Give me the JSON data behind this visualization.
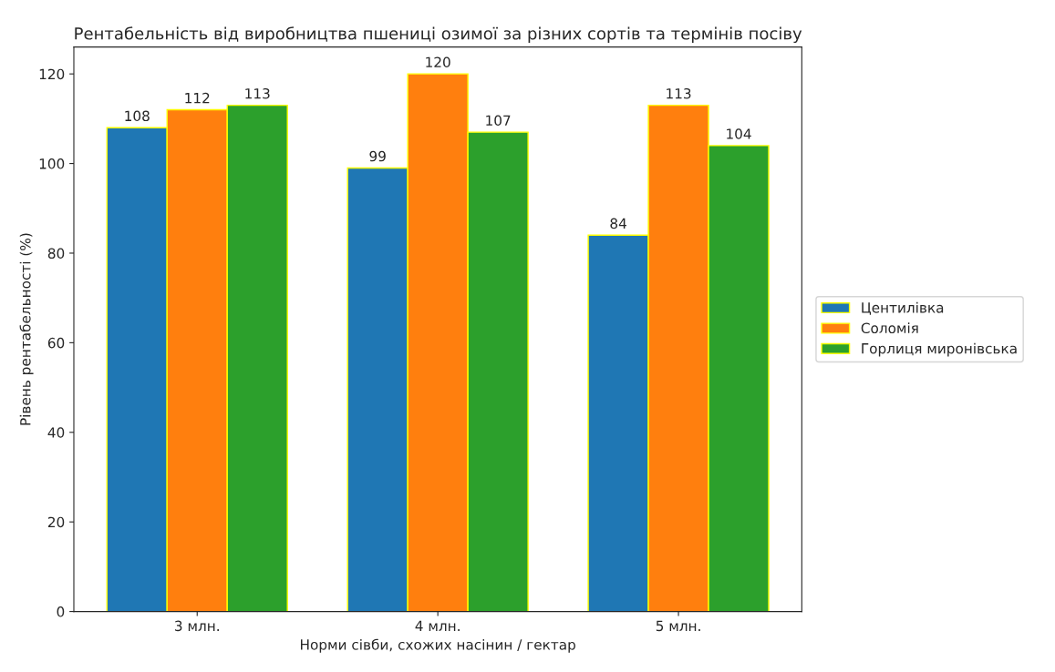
{
  "chart_data": {
    "type": "bar",
    "title": "Рентабельність від виробництва пшениці озимої за різних сортів та термінів посіву",
    "xlabel": "Норми сівби, схожих насінин / гектар",
    "ylabel": "Рівень рентабельності (%)",
    "categories": [
      "3 млн.",
      "4 млн.",
      "5 млн."
    ],
    "series": [
      {
        "name": "Центилівка",
        "color": "#1f77b4",
        "values": [
          108,
          99,
          84
        ]
      },
      {
        "name": "Соломія",
        "color": "#ff7f0e",
        "values": [
          112,
          120,
          113
        ]
      },
      {
        "name": "Горлиця миронівська",
        "color": "#2ca02c",
        "values": [
          113,
          107,
          104
        ]
      }
    ],
    "ylim": [
      0,
      126
    ],
    "yticks": [
      0,
      20,
      40,
      60,
      80,
      100,
      120
    ],
    "data_labels": true,
    "legend": "right",
    "grid": false
  }
}
